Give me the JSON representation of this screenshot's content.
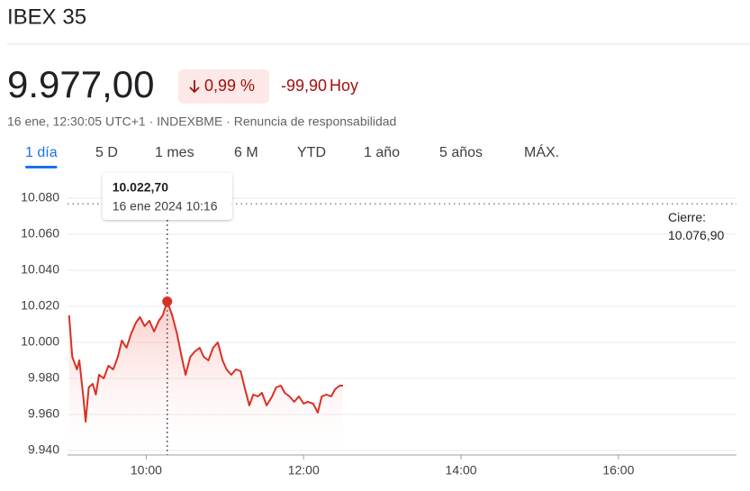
{
  "header": {
    "title": "IBEX 35",
    "price": "9.977,00",
    "change_pct": "0,99 %",
    "change_abs": "-99,90",
    "change_period": "Hoy",
    "meta": "16 ene, 12:30:05 UTC+1 · INDEXBME · Renuncia de responsabilidad"
  },
  "tabs": {
    "items": [
      "1 día",
      "5 D",
      "1 mes",
      "6 M",
      "YTD",
      "1 año",
      "5 años",
      "MÁX."
    ],
    "active": 0
  },
  "chart_data": {
    "type": "line",
    "color": "#d93025",
    "grid": true,
    "x": [
      9.02,
      9.06,
      9.12,
      9.15,
      9.2,
      9.23,
      9.27,
      9.32,
      9.36,
      9.4,
      9.46,
      9.52,
      9.58,
      9.64,
      9.69,
      9.75,
      9.81,
      9.87,
      9.92,
      9.98,
      10.04,
      10.1,
      10.16,
      10.21,
      10.2667,
      10.33,
      10.39,
      10.45,
      10.5,
      10.56,
      10.62,
      10.68,
      10.73,
      10.79,
      10.85,
      10.91,
      10.97,
      11.02,
      11.08,
      11.14,
      11.2,
      11.25,
      11.31,
      11.36,
      11.42,
      11.47,
      11.53,
      11.6,
      11.65,
      11.71,
      11.76,
      11.82,
      11.88,
      11.94,
      12.0,
      12.05,
      12.12,
      12.18,
      12.23,
      12.29,
      12.35,
      12.4,
      12.46,
      12.5
    ],
    "values": [
      10015,
      9992,
      9985,
      9990,
      9970,
      9956,
      9975,
      9977,
      9971,
      9982,
      9980,
      9987,
      9985,
      9992,
      10001,
      9997,
      10005,
      10011,
      10014,
      10009,
      10012,
      10006,
      10012,
      10015,
      10022.7,
      10015,
      10005,
      9992,
      9982,
      9992,
      9995,
      9997,
      9992,
      9990,
      9997,
      10000,
      9990,
      9985,
      9982,
      9985,
      9984,
      9975,
      9965,
      9971,
      9970,
      9972,
      9965,
      9970,
      9975,
      9976,
      9972,
      9970,
      9967,
      9970,
      9966,
      9967,
      9966,
      9961,
      9970,
      9971,
      9970,
      9974,
      9976,
      9976
    ],
    "xlim": [
      9,
      17.5
    ],
    "xticks": [
      {
        "value": 10,
        "label": "10:00"
      },
      {
        "value": 12,
        "label": "12:00"
      },
      {
        "value": 14,
        "label": "14:00"
      },
      {
        "value": 16,
        "label": "16:00"
      }
    ],
    "ylim": [
      9940,
      10090
    ],
    "yticks": [
      {
        "value": 9940,
        "label": "9.940"
      },
      {
        "value": 9960,
        "label": "9.960"
      },
      {
        "value": 9980,
        "label": "9.980"
      },
      {
        "value": 10000,
        "label": "10.000"
      },
      {
        "value": 10020,
        "label": "10.020"
      },
      {
        "value": 10040,
        "label": "10.040"
      },
      {
        "value": 10060,
        "label": "10.060"
      },
      {
        "value": 10080,
        "label": "10.080"
      }
    ],
    "previous_close": {
      "title": "Cierre:",
      "value": 10076.9,
      "label": "10.076,90"
    },
    "tooltip": {
      "x": 10.2667,
      "value": 10022.7,
      "value_label": "10.022,70",
      "time_label": "16 ene 2024 10:16"
    }
  }
}
